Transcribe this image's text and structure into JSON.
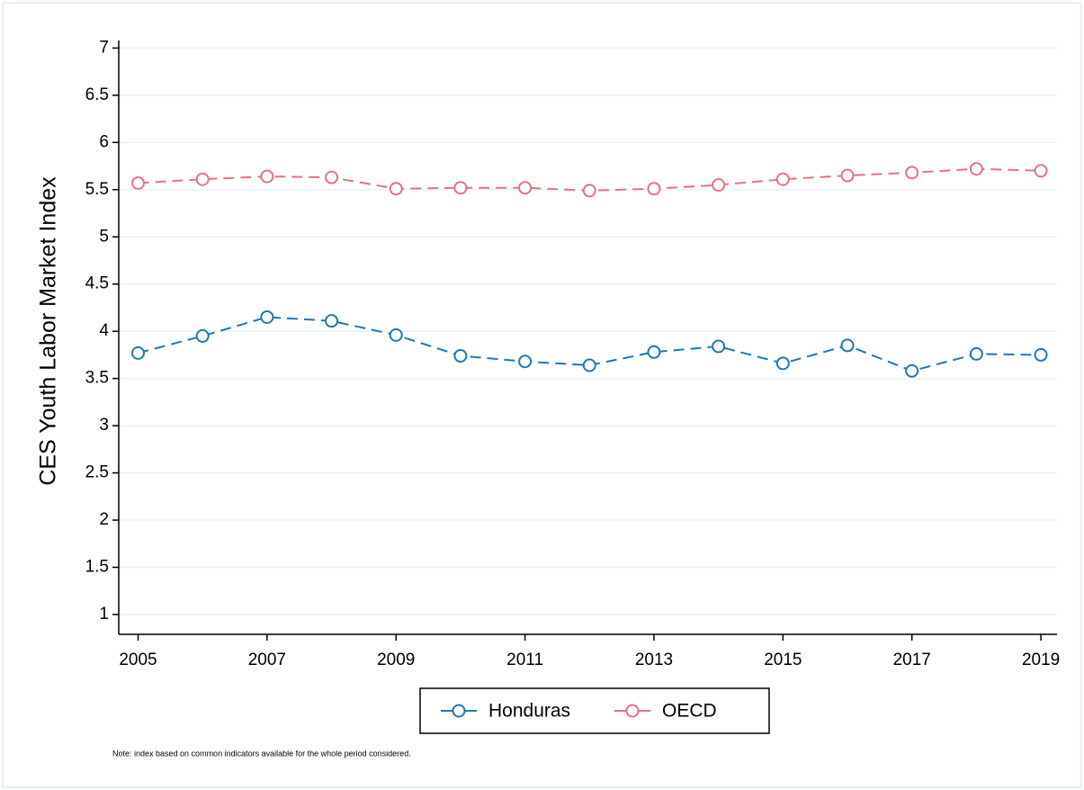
{
  "chart_data": {
    "type": "line",
    "ylabel": "CES Youth Labor Market Index",
    "note": "Note: index based on common indicators available for the whole period considered.",
    "x": [
      2005,
      2006,
      2007,
      2008,
      2009,
      2010,
      2011,
      2012,
      2013,
      2014,
      2015,
      2016,
      2017,
      2018,
      2019
    ],
    "series": [
      {
        "name": "Honduras",
        "color": "#1f77b4",
        "values": [
          3.77,
          3.95,
          4.15,
          4.11,
          3.96,
          3.74,
          3.68,
          3.64,
          3.78,
          3.84,
          3.66,
          3.85,
          3.58,
          3.76,
          3.75
        ]
      },
      {
        "name": "OECD",
        "color": "#e8707f",
        "values": [
          5.57,
          5.61,
          5.64,
          5.63,
          5.51,
          5.52,
          5.52,
          5.49,
          5.51,
          5.55,
          5.61,
          5.65,
          5.68,
          5.72,
          5.7
        ]
      }
    ],
    "xlim": [
      2004.7,
      2019.25
    ],
    "xticks": [
      2005,
      2007,
      2009,
      2011,
      2013,
      2015,
      2017,
      2019
    ],
    "ylim": [
      0.79,
      7.08
    ],
    "yticks": [
      1,
      1.5,
      2,
      2.5,
      3,
      3.5,
      4,
      4.5,
      5,
      5.5,
      6,
      6.5,
      7
    ],
    "grid": true,
    "legend": "bottom"
  }
}
